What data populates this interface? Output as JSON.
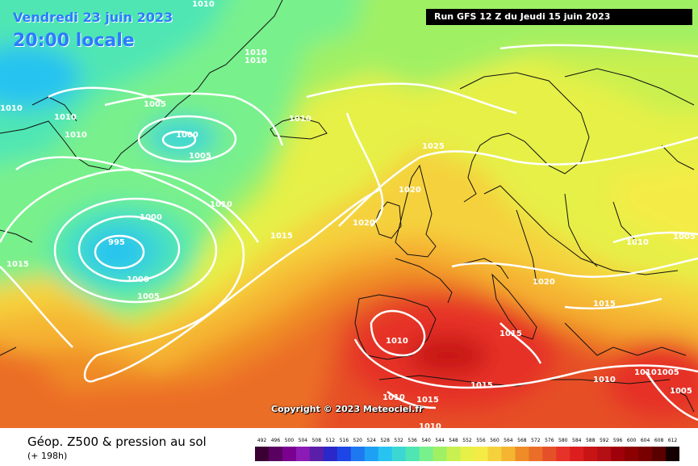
{
  "header": {
    "date": "Vendredi 23 juin 2023",
    "time": "20:00 locale",
    "run": "Run GFS 12 Z du Jeudi 15 juin 2023"
  },
  "copyright": "Copyright © 2023 Meteociel.fr",
  "footer": {
    "title": "Géop. Z500 & pression au sol",
    "subtitle": "(+ 198h)"
  },
  "legend": {
    "ticks": [
      "492",
      "496",
      "500",
      "504",
      "508",
      "512",
      "516",
      "520",
      "524",
      "528",
      "532",
      "536",
      "540",
      "544",
      "548",
      "552",
      "556",
      "560",
      "564",
      "568",
      "572",
      "576",
      "580",
      "584",
      "588",
      "592",
      "596",
      "600",
      "604",
      "608",
      "612"
    ],
    "colors": [
      "#3a0033",
      "#5a0060",
      "#7a0090",
      "#8c1ab4",
      "#5a1ea8",
      "#2a28c8",
      "#1e46e6",
      "#1e78f0",
      "#1ea0f5",
      "#28c3f0",
      "#3cd7d2",
      "#50e6b4",
      "#78f08c",
      "#a0f064",
      "#c8f050",
      "#e6f046",
      "#f5eb46",
      "#f5d23c",
      "#f5b432",
      "#f08c28",
      "#eb6e28",
      "#e65028",
      "#e63228",
      "#dc1e1e",
      "#c81414",
      "#b40f14",
      "#a0000a",
      "#8c0000",
      "#780000",
      "#5a0000",
      "#140000"
    ]
  },
  "isobars": [
    {
      "name": "isobar-label-1010-top",
      "text": "1010"
    },
    {
      "name": "isobar-label-1010-greenland-a",
      "text": "1010"
    },
    {
      "name": "isobar-label-1010-greenland-b",
      "text": "1010"
    },
    {
      "name": "isobar-label-1010-left-edge",
      "text": "1010"
    },
    {
      "name": "isobar-label-1010-west-a",
      "text": "1010"
    },
    {
      "name": "isobar-label-1010-west-b",
      "text": "1010"
    },
    {
      "name": "isobar-label-1005-north",
      "text": "1005"
    },
    {
      "name": "isobar-label-1000-low-north",
      "text": "1000"
    },
    {
      "name": "isobar-label-1005-low-north",
      "text": "1005"
    },
    {
      "name": "isobar-label-1010-iceland",
      "text": "1010"
    },
    {
      "name": "isobar-label-1025-high",
      "text": "1025"
    },
    {
      "name": "isobar-label-1020-uk",
      "text": "1020"
    },
    {
      "name": "isobar-label-1020-ireland",
      "text": "1020"
    },
    {
      "name": "isobar-label-1010-atlantic",
      "text": "1010"
    },
    {
      "name": "isobar-label-1000-low-main",
      "text": "1000"
    },
    {
      "name": "isobar-label-995-low-center",
      "text": "995"
    },
    {
      "name": "isobar-label-1000-low-south",
      "text": "1000"
    },
    {
      "name": "isobar-label-1005-low-south",
      "text": "1005"
    },
    {
      "name": "isobar-label-1015-atlantic",
      "text": "1015"
    },
    {
      "name": "isobar-label-1015-west-edge",
      "text": "1015"
    },
    {
      "name": "isobar-label-1010-east",
      "text": "1010"
    },
    {
      "name": "isobar-label-1005-east-edge",
      "text": "1005"
    },
    {
      "name": "isobar-label-1020-alps",
      "text": "1020"
    },
    {
      "name": "isobar-label-1015-balkans",
      "text": "1015"
    },
    {
      "name": "isobar-label-1015-italy",
      "text": "1015"
    },
    {
      "name": "isobar-label-1010-spain",
      "text": "1010"
    },
    {
      "name": "isobar-label-1010-greece",
      "text": "1010"
    },
    {
      "name": "isobar-label-1010-1005-turkey",
      "text": "10101005"
    },
    {
      "name": "isobar-label-1005-se",
      "text": "1005"
    },
    {
      "name": "isobar-label-1015-med",
      "text": "1015"
    },
    {
      "name": "isobar-label-1010-morocco",
      "text": "1010"
    },
    {
      "name": "isobar-label-1015-morocco",
      "text": "1015"
    },
    {
      "name": "isobar-label-1010-sahara",
      "text": "1010"
    }
  ],
  "pressure_centers": [
    {
      "name": "low-pressure-main",
      "type": "L",
      "value": 995
    },
    {
      "name": "low-pressure-north",
      "type": "L",
      "value": 1000
    },
    {
      "name": "high-pressure-north",
      "type": "H",
      "value": 1025
    }
  ]
}
